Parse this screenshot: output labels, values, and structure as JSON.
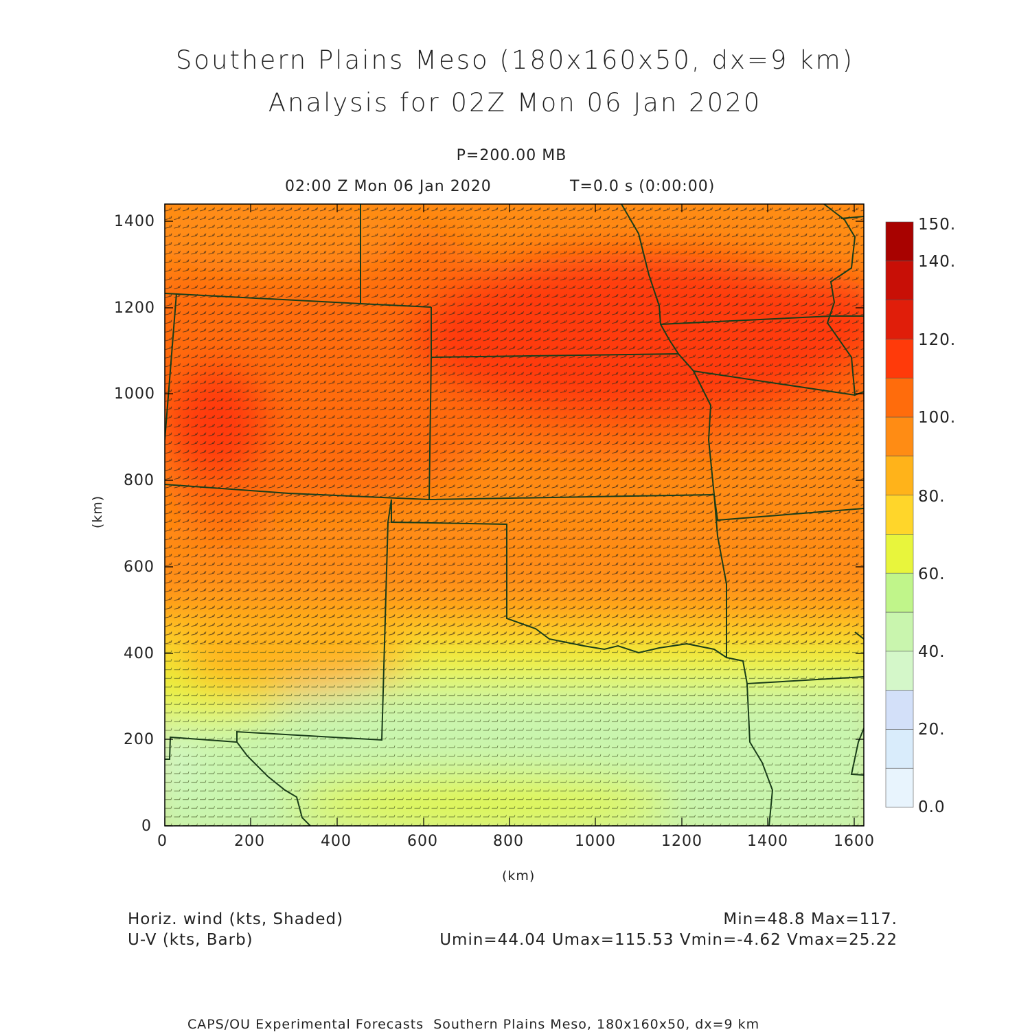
{
  "title_line1": "Southern Plains Meso (180x160x50, dx=9 km)",
  "title_line2": "Analysis for 02Z Mon 06 Jan 2020",
  "level_label": "P=200.00 MB",
  "time_label": "02:00 Z Mon 06 Jan 2020",
  "run_label": "T=0.0 s (0:00:00)",
  "x_axis_label": "(km)",
  "y_axis_label": "(km)",
  "x_ticks": [
    "0",
    "200",
    "400",
    "600",
    "800",
    "1000",
    "1200",
    "1400",
    "1600"
  ],
  "y_ticks": [
    "0",
    "200",
    "400",
    "600",
    "800",
    "1000",
    "1200",
    "1400"
  ],
  "colorbar": {
    "labels": [
      "0.0",
      "20.",
      "40.",
      "60.",
      "80.",
      "100.",
      "120.",
      "140.",
      "150."
    ],
    "colors": [
      "#e8f4fd",
      "#d9ecfb",
      "#d3e0f9",
      "#d4f7c9",
      "#c9f5ae",
      "#c0f58a",
      "#e8f53c",
      "#ffd62a",
      "#ffb31a",
      "#ff8c14",
      "#ff6c0c",
      "#ff3a0a",
      "#e01e0a",
      "#c80f06",
      "#a80200"
    ]
  },
  "field_desc_1": "Horiz. wind (kts, Shaded)",
  "field_desc_2": "U-V (kts, Barb)",
  "stats_1": "Min=48.8 Max=117.",
  "stats_2": "Umin=44.04 Umax=115.53 Vmin=-4.62 Vmax=25.22",
  "footer": "CAPS/OU Experimental Forecasts  Southern Plains Meso, 180x160x50, dx=9 km",
  "colors": {
    "border": "#1a3d1a",
    "barb": "#3a2a1a"
  }
}
